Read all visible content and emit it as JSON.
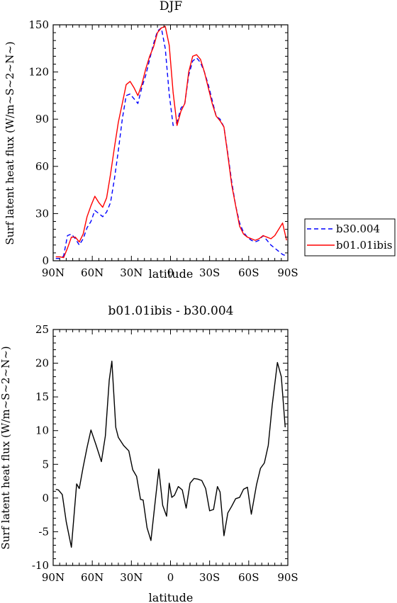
{
  "chart_data": [
    {
      "type": "line",
      "title": "DJF",
      "xlabel": "latitude",
      "ylabel": "Surf latent heat flux (W/m~S~2~N~)",
      "xlim": [
        -90,
        90
      ],
      "ylim": [
        0,
        150
      ],
      "x_ticks": [
        -90,
        -60,
        -30,
        0,
        30,
        60,
        90
      ],
      "x_tick_labels": [
        "90N",
        "60N",
        "30N",
        "0",
        "30S",
        "60S",
        "90S"
      ],
      "y_ticks": [
        0,
        30,
        60,
        90,
        120,
        150
      ],
      "y_tick_labels": [
        "0",
        "30",
        "60",
        "90",
        "120",
        "150"
      ],
      "legend_placement": "right",
      "series": [
        {
          "name": "b30.004",
          "color": "#0000ff",
          "dash": "dashed",
          "x": [
            -88,
            -85,
            -82,
            -79,
            -76,
            -73,
            -70,
            -67,
            -64,
            -61,
            -58,
            -55,
            -52,
            -49,
            -46,
            -43,
            -40,
            -37,
            -34,
            -31,
            -28,
            -25,
            -22,
            -19,
            -16,
            -13,
            -10,
            -7,
            -4,
            -1,
            2,
            5,
            8,
            11,
            14,
            17,
            20,
            23,
            26,
            29,
            32,
            35,
            38,
            41,
            44,
            47,
            50,
            53,
            56,
            59,
            62,
            65,
            68,
            71,
            74,
            77,
            80,
            83,
            86,
            89
          ],
          "values": [
            1.5,
            1.5,
            3,
            16,
            17,
            14,
            10,
            14,
            21,
            25,
            32,
            30,
            28,
            31,
            37,
            52,
            70,
            90,
            105,
            106,
            103,
            100,
            110,
            118,
            128,
            138,
            146,
            148,
            135,
            106,
            86,
            88,
            97,
            100,
            118,
            127,
            129,
            126,
            120,
            112,
            102,
            92,
            90,
            85,
            68,
            50,
            35,
            24,
            18,
            15,
            13,
            12,
            13,
            16,
            13,
            10,
            8,
            6,
            4,
            3
          ]
        },
        {
          "name": "b01.01ibis",
          "color": "#ff0000",
          "dash": "solid",
          "x": [
            -88,
            -85,
            -82,
            -79,
            -76,
            -73,
            -70,
            -67,
            -64,
            -61,
            -58,
            -55,
            -52,
            -49,
            -46,
            -43,
            -40,
            -37,
            -34,
            -31,
            -28,
            -25,
            -22,
            -19,
            -16,
            -13,
            -10,
            -7,
            -4,
            -1,
            2,
            5,
            8,
            11,
            14,
            17,
            20,
            23,
            26,
            29,
            32,
            35,
            38,
            41,
            44,
            47,
            50,
            53,
            56,
            59,
            62,
            65,
            68,
            71,
            74,
            77,
            80,
            83,
            86,
            89
          ],
          "values": [
            2.5,
            2.5,
            2,
            8,
            15,
            15,
            12,
            17,
            28,
            35,
            41,
            37,
            34,
            40,
            55,
            72,
            88,
            100,
            112,
            114,
            110,
            105,
            112,
            122,
            130,
            136,
            145,
            148,
            149,
            137,
            107,
            86,
            95,
            100,
            120,
            130,
            131,
            128,
            120,
            110,
            100,
            92,
            89,
            85,
            67,
            48,
            35,
            22,
            17,
            15,
            14,
            13,
            14,
            16,
            15,
            14,
            16,
            20,
            24,
            13
          ]
        }
      ]
    },
    {
      "type": "line",
      "title": "b01.01ibis - b30.004",
      "xlabel": "latitude",
      "ylabel": "Surf latent heat flux (W/m~S~2~N~)",
      "xlim": [
        -90,
        90
      ],
      "ylim": [
        -10,
        25
      ],
      "x_ticks": [
        -90,
        -60,
        -30,
        0,
        30,
        60,
        90
      ],
      "x_tick_labels": [
        "90N",
        "60N",
        "30N",
        "0",
        "30S",
        "60S",
        "90S"
      ],
      "y_ticks": [
        -10,
        -5,
        0,
        5,
        10,
        15,
        20,
        25
      ],
      "y_tick_labels": [
        "-10",
        "-5",
        "0",
        "5",
        "10",
        "15",
        "20",
        "25"
      ],
      "series": [
        {
          "color": "#000000",
          "dash": "solid",
          "x": [
            -88,
            -86,
            -83,
            -80,
            -76,
            -72,
            -70,
            -67,
            -64,
            -61,
            -57,
            -53,
            -50,
            -47,
            -45,
            -42,
            -40,
            -36,
            -32,
            -29,
            -26,
            -23,
            -21,
            -18,
            -15,
            -12,
            -9,
            -6,
            -3,
            -1,
            1,
            3,
            6,
            9,
            12,
            15,
            18,
            21,
            24,
            27,
            30,
            33,
            36,
            38,
            41,
            44,
            47,
            50,
            53,
            56,
            59,
            62,
            66,
            69,
            72,
            75,
            78,
            82,
            85,
            88
          ],
          "values": [
            1.3,
            1.2,
            0.5,
            -3.5,
            -7.3,
            2.1,
            1.4,
            4.6,
            7.5,
            10.1,
            7.8,
            5.4,
            9.2,
            17.5,
            20.3,
            10.5,
            9,
            7.8,
            7,
            4.2,
            3.2,
            -0.2,
            -0.3,
            -4.4,
            -6.3,
            -1,
            4.3,
            -1.1,
            -2.7,
            2.2,
            0.1,
            0.4,
            1.7,
            1.2,
            -1.5,
            2.2,
            2.9,
            2.8,
            2.6,
            1.4,
            -1.9,
            -1.7,
            1.7,
            0.9,
            -5.6,
            -2.2,
            -1.2,
            -0.1,
            0.1,
            1.3,
            1.6,
            -2.4,
            2,
            4.4,
            5.2,
            7.8,
            13.7,
            20.1,
            18,
            10.5
          ]
        }
      ]
    }
  ]
}
